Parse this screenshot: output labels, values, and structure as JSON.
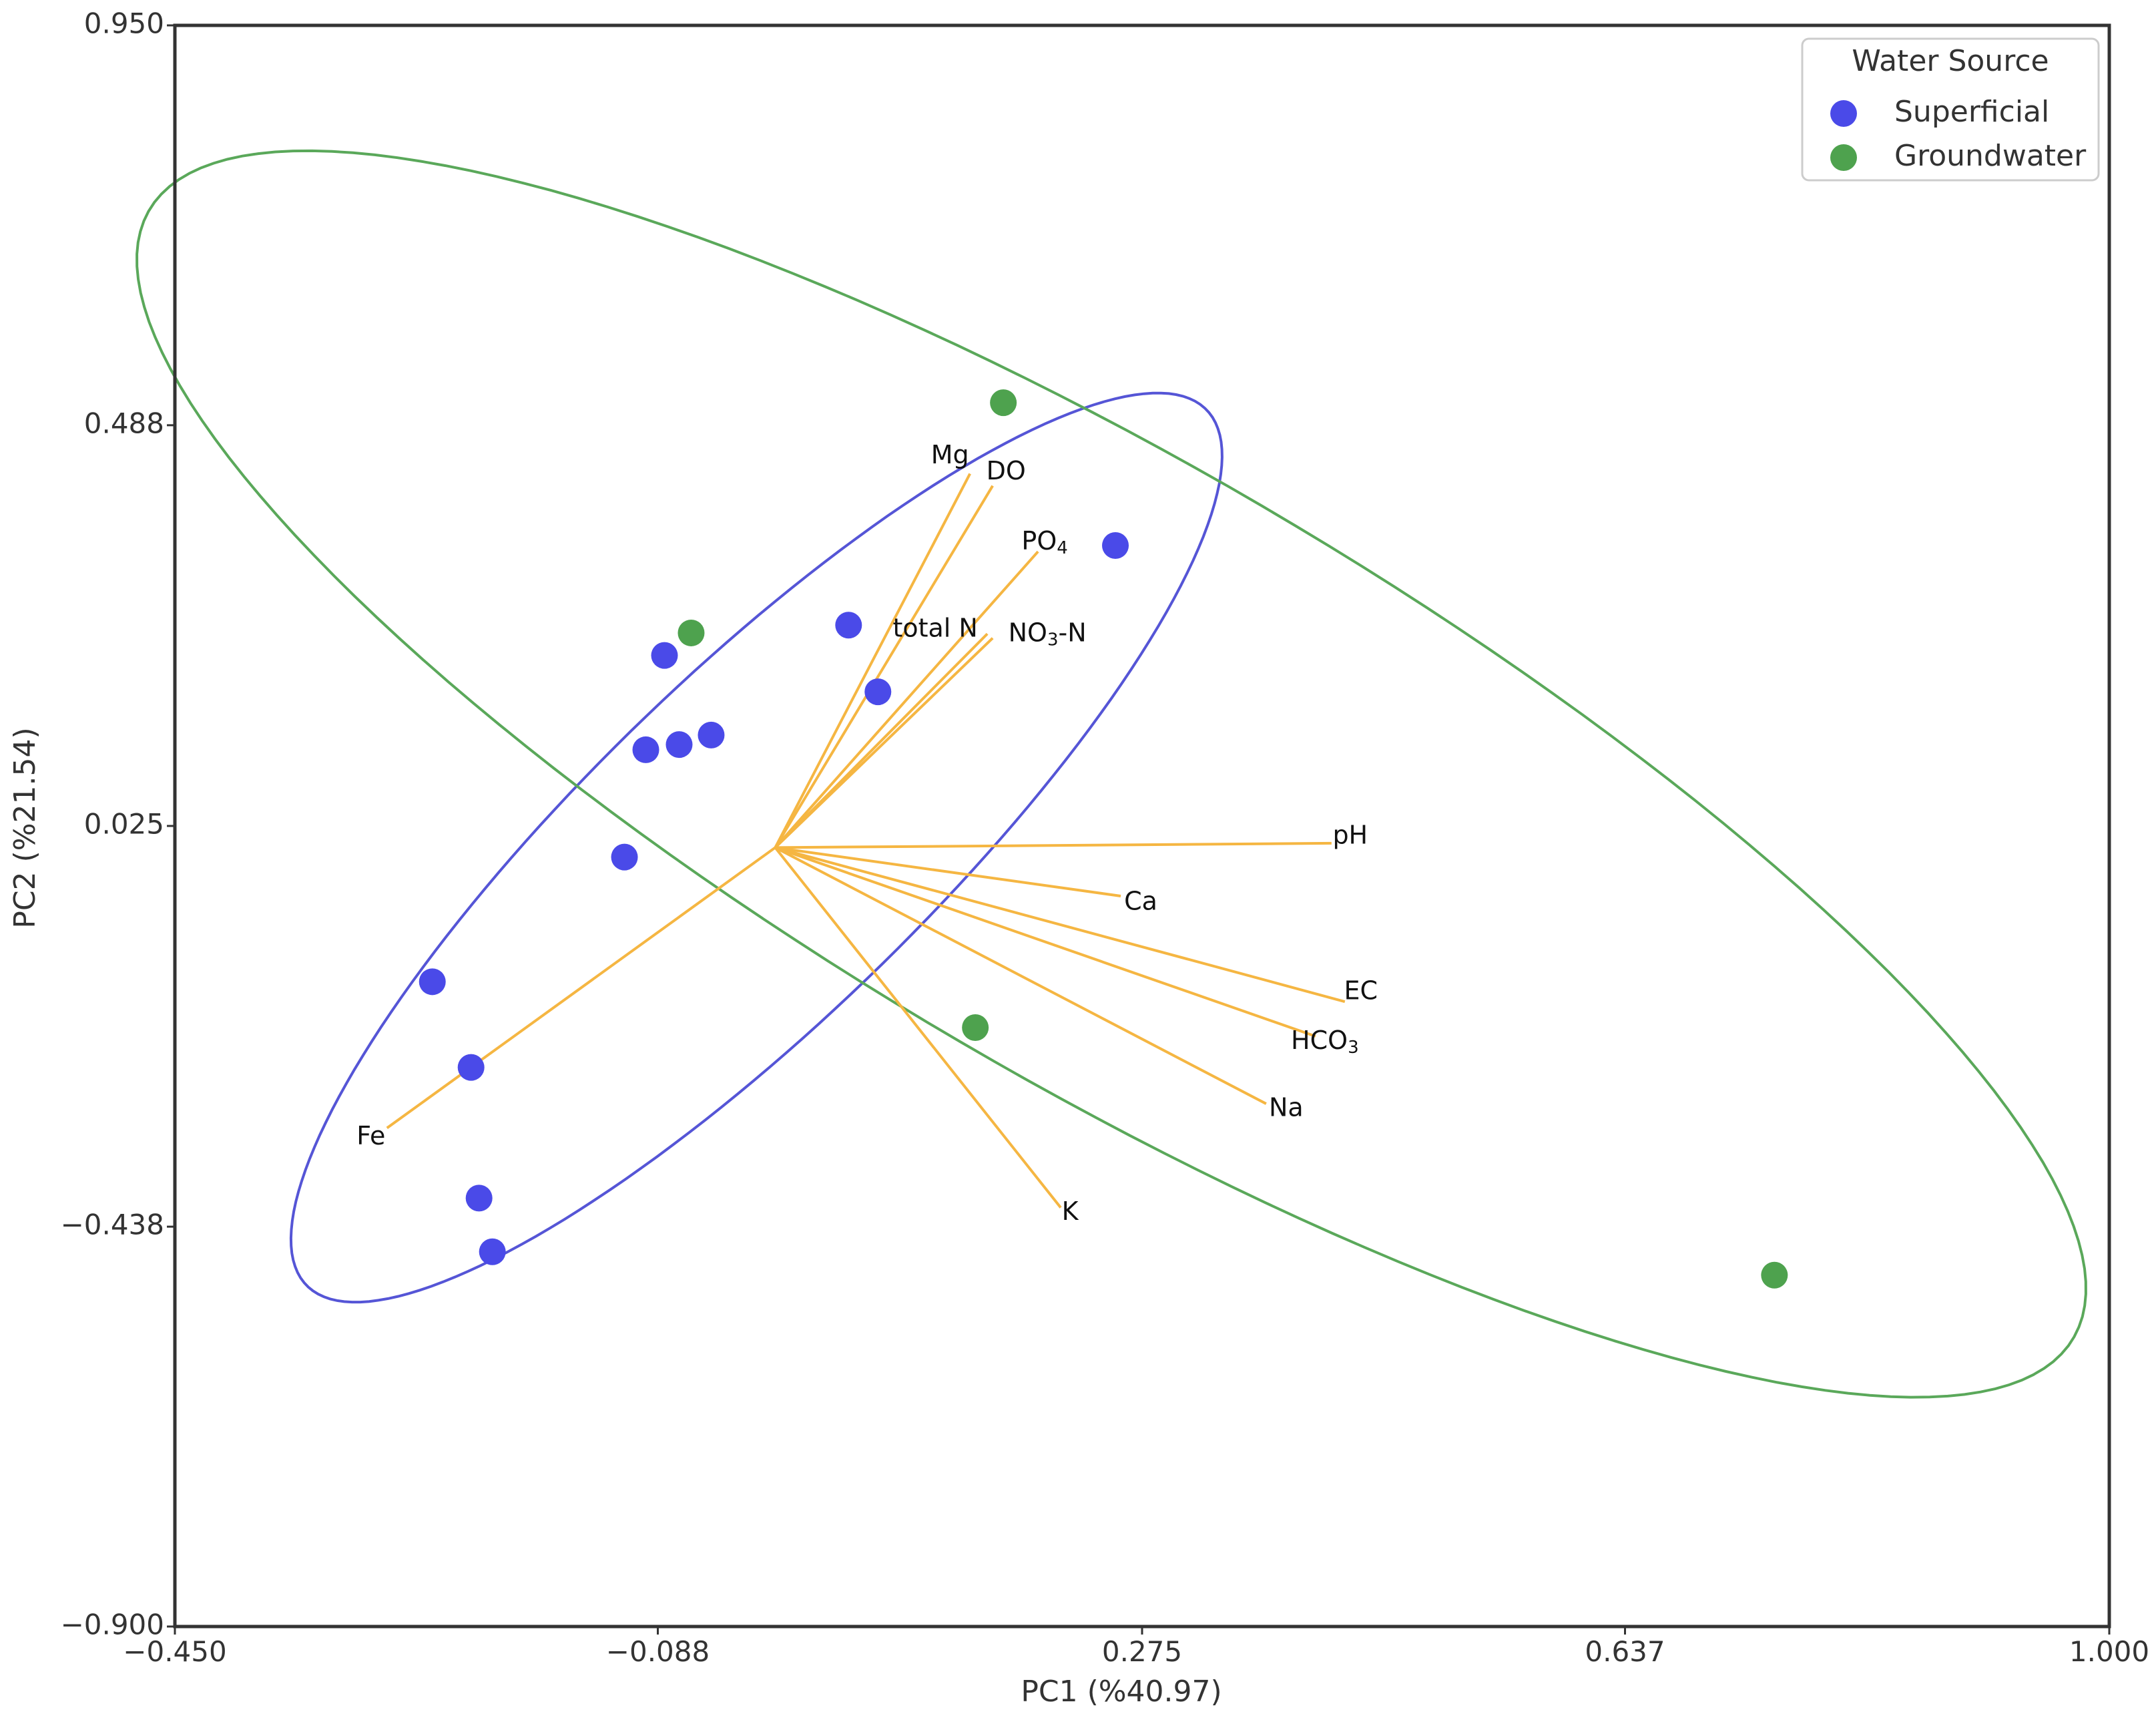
{
  "chart_data": {
    "type": "scatter",
    "subtype": "pca-biplot",
    "xlabel": "PC1 (%40.97)",
    "ylabel": "PC2 (%21.54)",
    "xlim": [
      -0.45,
      1.0
    ],
    "ylim": [
      -0.9,
      0.95
    ],
    "xticks": [
      -0.45,
      -0.088,
      0.275,
      0.637,
      1.0
    ],
    "xtick_labels": [
      "−0.450",
      "−0.088",
      "0.275",
      "0.637",
      "1.000"
    ],
    "yticks": [
      0.95,
      0.488,
      0.025,
      -0.438,
      -0.9
    ],
    "ytick_labels": [
      "0.950",
      "0.488",
      "0.025",
      "−0.438",
      "−0.900"
    ],
    "grid": false,
    "legend": {
      "title": "Water Source",
      "position": "top-right",
      "entries": [
        {
          "name": "Superficial",
          "color": "#4a4ae8"
        },
        {
          "name": "Groundwater",
          "color": "#4ea24e"
        }
      ]
    },
    "series": [
      {
        "name": "Superficial",
        "color": "#4a4ae8",
        "points": [
          {
            "x": 0.255,
            "y": 0.349
          },
          {
            "x": 0.055,
            "y": 0.257
          },
          {
            "x": -0.083,
            "y": 0.222
          },
          {
            "x": 0.077,
            "y": 0.18
          },
          {
            "x": -0.097,
            "y": 0.113
          },
          {
            "x": -0.072,
            "y": 0.119
          },
          {
            "x": -0.048,
            "y": 0.13
          },
          {
            "x": -0.113,
            "y": -0.011
          },
          {
            "x": -0.257,
            "y": -0.155
          },
          {
            "x": -0.228,
            "y": -0.254
          },
          {
            "x": -0.222,
            "y": -0.405
          },
          {
            "x": -0.212,
            "y": -0.467
          }
        ]
      },
      {
        "name": "Groundwater",
        "color": "#4ea24e",
        "points": [
          {
            "x": 0.171,
            "y": 0.514
          },
          {
            "x": -0.063,
            "y": 0.248
          },
          {
            "x": 0.15,
            "y": -0.208
          },
          {
            "x": 0.749,
            "y": -0.494
          }
        ]
      }
    ],
    "ellipses": [
      {
        "group": "Superficial",
        "color": "#5555d6",
        "center": {
          "x": -0.014,
          "y": 0.0
        },
        "semi_major": 0.612,
        "semi_minor": 0.152,
        "angle_deg": 58
      },
      {
        "group": "Groundwater",
        "color": "#5aa85a",
        "center": {
          "x": 0.252,
          "y": 0.085
        },
        "semi_major": 0.98,
        "semi_minor": 0.303,
        "angle_deg": -44.5
      }
    ],
    "loadings": {
      "origin": {
        "x": 0.0,
        "y": 0.0
      },
      "color": "#f5b642",
      "vectors": [
        {
          "label": "Mg",
          "x": 0.146,
          "y": 0.432
        },
        {
          "label": "DO",
          "x": 0.163,
          "y": 0.418
        },
        {
          "label": "PO4",
          "x": 0.197,
          "y": 0.342
        },
        {
          "label": "total N",
          "x": 0.159,
          "y": 0.247
        },
        {
          "label": "NO3-N",
          "x": 0.163,
          "y": 0.242
        },
        {
          "label": "pH",
          "x": 0.417,
          "y": 0.005
        },
        {
          "label": "Ca",
          "x": 0.259,
          "y": -0.056
        },
        {
          "label": "EC",
          "x": 0.427,
          "y": -0.178
        },
        {
          "label": "HCO3",
          "x": 0.405,
          "y": -0.218
        },
        {
          "label": "Na",
          "x": 0.368,
          "y": -0.296
        },
        {
          "label": "K",
          "x": 0.214,
          "y": -0.416
        },
        {
          "label": "Fe",
          "x": -0.291,
          "y": -0.324
        }
      ]
    }
  }
}
